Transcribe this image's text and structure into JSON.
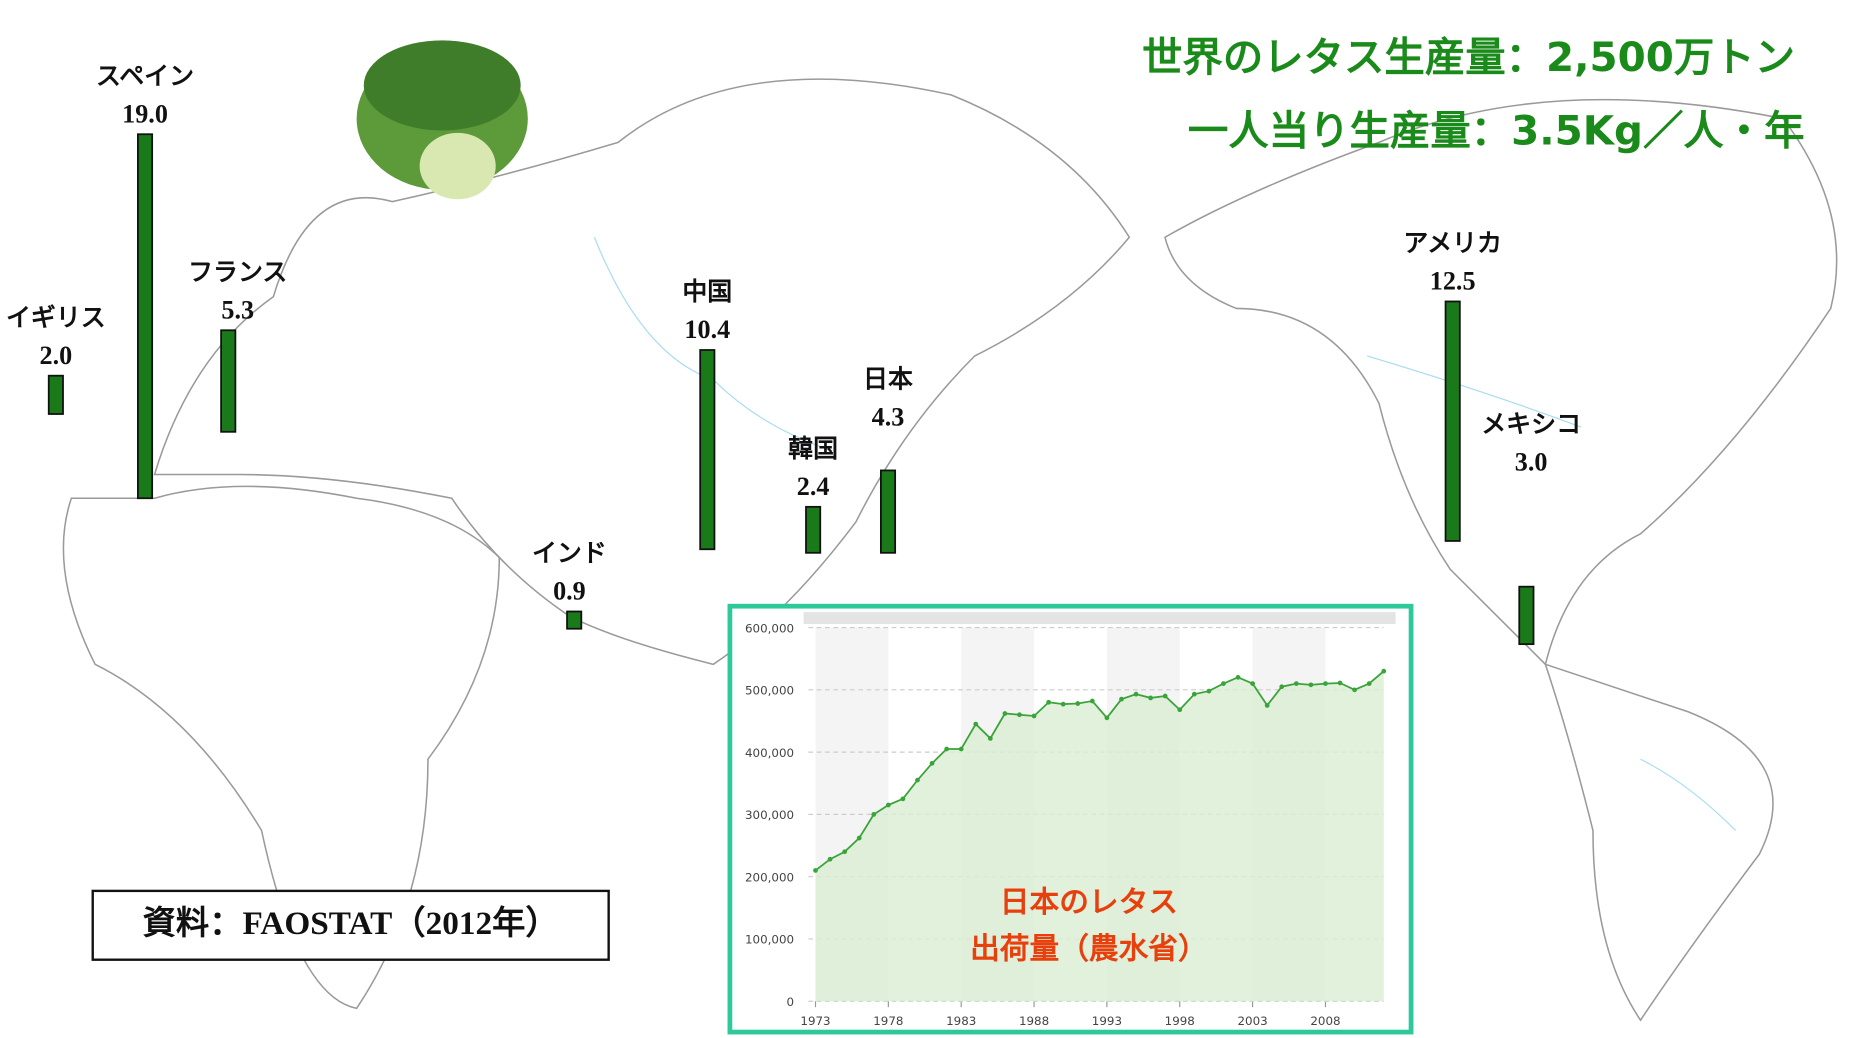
{
  "chart_data": [
    {
      "type": "bar",
      "title": "世界のレタス生産量：2,500万トン",
      "subtitle": "一人当り生産量：3.5Kg／人・年",
      "source": "資料：FAOSTAT（2012年）",
      "categories": [
        "イギリス",
        "スペイン",
        "フランス",
        "インド",
        "中国",
        "韓国",
        "日本",
        "アメリカ",
        "メキシコ"
      ],
      "values": [
        2.0,
        19.0,
        5.3,
        0.9,
        10.4,
        2.4,
        4.3,
        12.5,
        3.0
      ],
      "value_labels": [
        "2.0",
        "19.0",
        "5.3",
        "0.9",
        "10.4",
        "2.4",
        "4.3",
        "12.5",
        "3.0"
      ],
      "color": "#1a7a1a"
    },
    {
      "type": "line",
      "annotation": [
        "日本のレタス",
        "出荷量（農水省）"
      ],
      "x": [
        1973,
        1974,
        1975,
        1976,
        1977,
        1978,
        1979,
        1980,
        1981,
        1982,
        1983,
        1984,
        1985,
        1986,
        1987,
        1988,
        1989,
        1990,
        1991,
        1992,
        1993,
        1994,
        1995,
        1996,
        1997,
        1998,
        1999,
        2000,
        2001,
        2002,
        2003,
        2004,
        2005,
        2006,
        2007,
        2008,
        2009,
        2010,
        2011,
        2012
      ],
      "values": [
        210000,
        228000,
        240000,
        262000,
        300000,
        315000,
        325000,
        355000,
        382000,
        405000,
        405000,
        445000,
        422000,
        462000,
        460000,
        458000,
        480000,
        477000,
        478000,
        482000,
        455000,
        485000,
        493000,
        487000,
        490000,
        468000,
        493000,
        498000,
        510000,
        520000,
        510000,
        475000,
        505000,
        510000,
        508000,
        510000,
        511000,
        500000,
        510000,
        530000
      ],
      "color": "#3aa33a",
      "xlim": [
        1973,
        2012
      ],
      "ylim": [
        0,
        600000
      ],
      "xticks": [
        1973,
        1978,
        1983,
        1988,
        1993,
        1998,
        2003,
        2008
      ],
      "yticks": [
        0,
        {
          "value": 100000,
          "label": "100,000"
        },
        {
          "value": 200000,
          "label": "200,000"
        },
        {
          "value": 300000,
          "label": "300,000"
        },
        {
          "value": 400000,
          "label": "400,000"
        },
        {
          "value": 500000,
          "label": "500,000"
        },
        {
          "value": 600000,
          "label": "600,000"
        }
      ],
      "grid": true
    }
  ]
}
